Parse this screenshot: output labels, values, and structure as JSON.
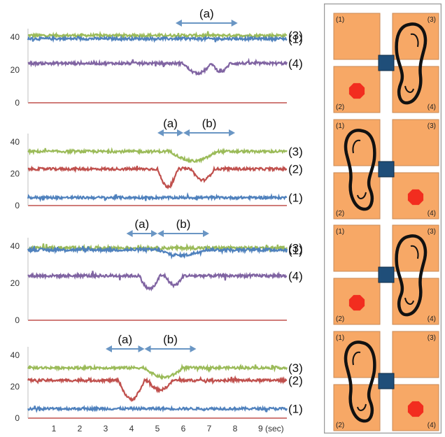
{
  "chart_data": [
    {
      "type": "line",
      "ylim": [
        0,
        45
      ],
      "yticks": [
        0,
        20,
        40
      ],
      "x": [
        0,
        10
      ],
      "series": [
        {
          "name": "(3)",
          "color": "#9bbb59",
          "level": 41,
          "dips": []
        },
        {
          "name": "(1)",
          "color": "#4f81bd",
          "level": 39,
          "dips": []
        },
        {
          "name": "(4)",
          "color": "#8064a2",
          "level": 24,
          "dips": [
            [
              6.0,
              7.1,
              6
            ],
            [
              7.1,
              7.8,
              5
            ]
          ]
        },
        {
          "name": "",
          "color": "#c0504d",
          "level": 0,
          "dips": []
        }
      ],
      "annotations": [
        {
          "label": "(a)",
          "x_start": 5.7,
          "x_end": 8.1
        }
      ]
    },
    {
      "type": "line",
      "ylim": [
        0,
        45
      ],
      "yticks": [
        0,
        20,
        40
      ],
      "x": [
        0,
        10
      ],
      "series": [
        {
          "name": "(3)",
          "color": "#9bbb59",
          "level": 34,
          "dips": [
            [
              5.5,
              7.3,
              6
            ]
          ]
        },
        {
          "name": "(2)",
          "color": "#c0504d",
          "level": 23,
          "dips": [
            [
              5.0,
              5.8,
              11
            ],
            [
              6.3,
              7.2,
              7
            ]
          ]
        },
        {
          "name": "(1)",
          "color": "#4f81bd",
          "level": 5,
          "dips": []
        }
      ],
      "annotations": [
        {
          "label": "(a)",
          "x_start": 5.0,
          "x_end": 6.0
        },
        {
          "label": "(b)",
          "x_start": 6.0,
          "x_end": 8.0
        }
      ]
    },
    {
      "type": "line",
      "ylim": [
        0,
        45
      ],
      "yticks": [
        0,
        20,
        40
      ],
      "x": [
        0,
        10
      ],
      "series": [
        {
          "name": "(3)",
          "color": "#9bbb59",
          "level": 39,
          "dips": []
        },
        {
          "name": "(1)",
          "color": "#4f81bd",
          "level": 38,
          "dips": [
            [
              5.0,
              6.8,
              3
            ]
          ]
        },
        {
          "name": "(4)",
          "color": "#8064a2",
          "level": 24,
          "dips": [
            [
              4.3,
              5.1,
              7
            ],
            [
              5.3,
              6.0,
              5
            ]
          ]
        }
      ],
      "annotations": [
        {
          "label": "(a)",
          "x_start": 3.8,
          "x_end": 5.0
        },
        {
          "label": "(b)",
          "x_start": 5.0,
          "x_end": 7.0
        }
      ]
    },
    {
      "type": "line",
      "ylim": [
        0,
        45
      ],
      "yticks": [
        0,
        20,
        40
      ],
      "x": [
        0,
        10
      ],
      "series": [
        {
          "name": "(3)",
          "color": "#9bbb59",
          "level": 32,
          "dips": [
            [
              4.5,
              6.0,
              6
            ]
          ]
        },
        {
          "name": "(2)",
          "color": "#c0504d",
          "level": 24,
          "dips": [
            [
              3.5,
              4.5,
              12
            ],
            [
              4.6,
              5.6,
              6
            ]
          ]
        },
        {
          "name": "(1)",
          "color": "#4f81bd",
          "level": 6,
          "dips": []
        }
      ],
      "annotations": [
        {
          "label": "(a)",
          "x_start": 3.0,
          "x_end": 4.5
        },
        {
          "label": "(b)",
          "x_start": 4.5,
          "x_end": 6.5
        }
      ]
    }
  ],
  "x_tick_labels": [
    "1",
    "2",
    "3",
    "4",
    "5",
    "6",
    "7",
    "8",
    "9 (sec)"
  ],
  "diagram": {
    "panels": [
      {
        "foot": "right",
        "red_dot_cell": "(2)"
      },
      {
        "foot": "left",
        "red_dot_cell": "(4)"
      },
      {
        "foot": "right",
        "red_dot_cell": "(2)"
      },
      {
        "foot": "left",
        "red_dot_cell": "(4)"
      }
    ],
    "cell_labels": [
      "(1)",
      "(3)",
      "(2)",
      "(4)"
    ],
    "colors": {
      "cell": "#f7a866",
      "cell_border": "#c98a55",
      "sensor": "#1f4e79",
      "dot": "#f22d1f",
      "frame": "#9a9a9a"
    }
  }
}
